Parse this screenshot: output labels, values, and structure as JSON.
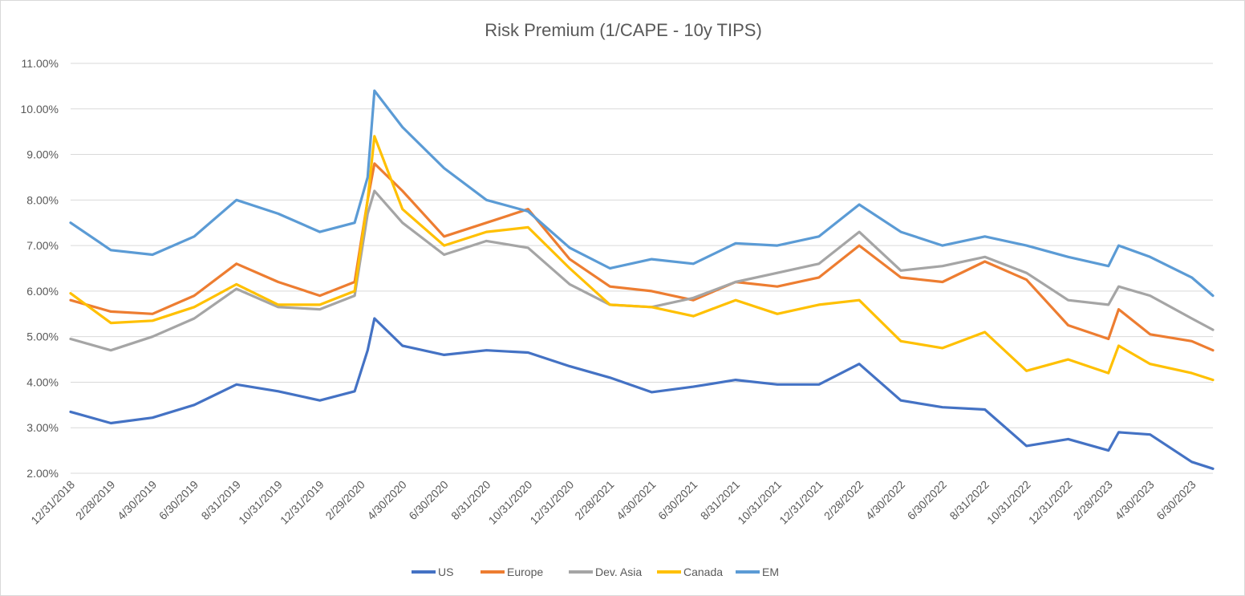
{
  "chart_data": {
    "type": "line",
    "title": "Risk Premium (1/CAPE - 10y TIPS)",
    "xlabel": "",
    "ylabel": "",
    "x_range": [
      "12/31/2018",
      "7/31/2023"
    ],
    "ylim": [
      0.02,
      0.11
    ],
    "y_ticks": [
      "2.00%",
      "3.00%",
      "4.00%",
      "5.00%",
      "6.00%",
      "7.00%",
      "8.00%",
      "9.00%",
      "10.00%",
      "11.00%"
    ],
    "x_ticks": [
      "12/31/2018",
      "2/28/2019",
      "4/30/2019",
      "6/30/2019",
      "8/31/2019",
      "10/31/2019",
      "12/31/2019",
      "2/29/2020",
      "4/30/2020",
      "6/30/2020",
      "8/31/2020",
      "10/31/2020",
      "12/31/2020",
      "2/28/2021",
      "4/30/2021",
      "6/30/2021",
      "8/31/2021",
      "10/31/2021",
      "12/31/2021",
      "2/28/2022",
      "4/30/2022",
      "6/30/2022",
      "8/31/2022",
      "10/31/2022",
      "12/31/2022",
      "2/28/2023",
      "4/30/2023",
      "6/30/2023"
    ],
    "grid": true,
    "legend_position": "bottom",
    "x": [
      "12/31/2018",
      "2/28/2019",
      "4/30/2019",
      "6/30/2019",
      "8/31/2019",
      "10/31/2019",
      "12/31/2019",
      "2/20/2020",
      "3/10/2020",
      "3/20/2020",
      "4/30/2020",
      "6/30/2020",
      "8/31/2020",
      "10/31/2020",
      "12/31/2020",
      "2/28/2021",
      "4/30/2021",
      "6/30/2021",
      "8/31/2021",
      "10/31/2021",
      "12/31/2021",
      "2/28/2022",
      "4/30/2022",
      "6/30/2022",
      "8/31/2022",
      "10/31/2022",
      "12/31/2022",
      "2/28/2023",
      "3/15/2023",
      "4/30/2023",
      "6/30/2023",
      "7/31/2023"
    ],
    "series": [
      {
        "name": "US",
        "color": "#4472C4",
        "values": [
          0.0335,
          0.031,
          0.0322,
          0.035,
          0.0395,
          0.038,
          0.036,
          0.038,
          0.047,
          0.054,
          0.048,
          0.046,
          0.047,
          0.0465,
          0.0435,
          0.041,
          0.0378,
          0.039,
          0.0405,
          0.0395,
          0.0395,
          0.044,
          0.036,
          0.0345,
          0.034,
          0.026,
          0.0275,
          0.025,
          0.029,
          0.0285,
          0.0225,
          0.021
        ]
      },
      {
        "name": "Europe",
        "color": "#ED7D31",
        "values": [
          0.058,
          0.0555,
          0.055,
          0.059,
          0.066,
          0.062,
          0.059,
          0.062,
          0.08,
          0.088,
          0.082,
          0.072,
          0.075,
          0.078,
          0.067,
          0.061,
          0.06,
          0.058,
          0.062,
          0.061,
          0.063,
          0.07,
          0.063,
          0.062,
          0.0665,
          0.0625,
          0.0525,
          0.0495,
          0.056,
          0.0505,
          0.049,
          0.047
        ]
      },
      {
        "name": "Dev. Asia",
        "color": "#A5A5A5",
        "values": [
          0.0495,
          0.047,
          0.05,
          0.054,
          0.0605,
          0.0565,
          0.056,
          0.059,
          0.077,
          0.082,
          0.075,
          0.068,
          0.071,
          0.0695,
          0.0615,
          0.057,
          0.0565,
          0.0585,
          0.062,
          0.064,
          0.066,
          0.073,
          0.0645,
          0.0655,
          0.0675,
          0.064,
          0.058,
          0.057,
          0.061,
          0.059,
          0.054,
          0.0515
        ]
      },
      {
        "name": "Canada",
        "color": "#FFC000",
        "values": [
          0.0595,
          0.053,
          0.0535,
          0.0565,
          0.0615,
          0.057,
          0.057,
          0.06,
          0.08,
          0.094,
          0.078,
          0.07,
          0.073,
          0.074,
          0.065,
          0.057,
          0.0565,
          0.0545,
          0.058,
          0.055,
          0.057,
          0.058,
          0.049,
          0.0475,
          0.051,
          0.0425,
          0.045,
          0.042,
          0.048,
          0.044,
          0.042,
          0.0405
        ]
      },
      {
        "name": "EM",
        "color": "#5B9BD5",
        "values": [
          0.075,
          0.069,
          0.068,
          0.072,
          0.08,
          0.077,
          0.073,
          0.075,
          0.085,
          0.104,
          0.096,
          0.087,
          0.08,
          0.0775,
          0.0695,
          0.065,
          0.067,
          0.066,
          0.0705,
          0.07,
          0.072,
          0.079,
          0.073,
          0.07,
          0.072,
          0.07,
          0.0675,
          0.0655,
          0.07,
          0.0675,
          0.063,
          0.059
        ]
      }
    ]
  }
}
